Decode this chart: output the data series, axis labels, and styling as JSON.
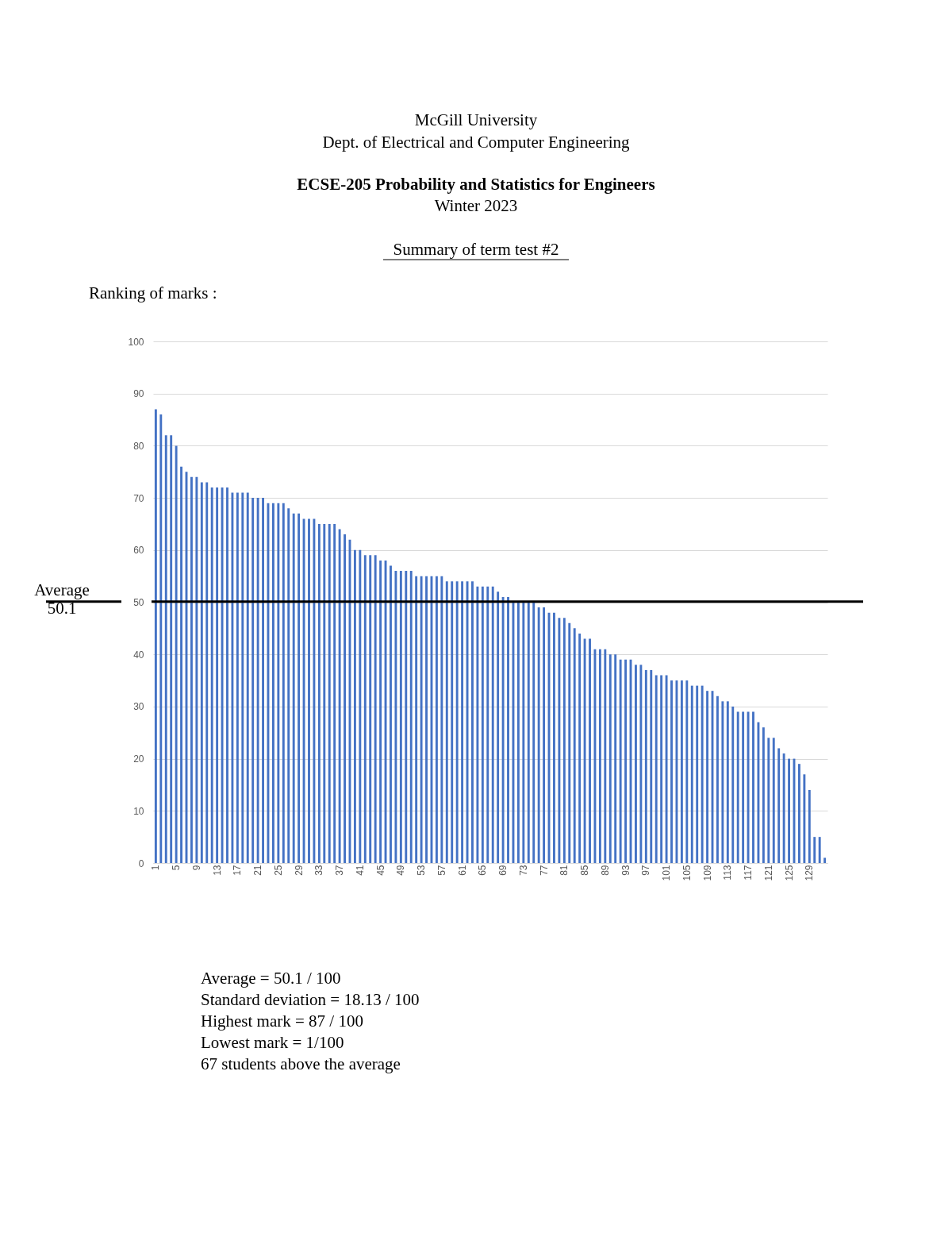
{
  "chart_data": {
    "type": "bar",
    "title": "ECSE-205 Probability and Statistics for Engineers",
    "subtitle": "Winter 2023",
    "categories": [
      "1",
      null,
      null,
      null,
      "5",
      null,
      null,
      null,
      "9",
      null,
      null,
      null,
      "13",
      null,
      null,
      null,
      "17",
      null,
      null,
      null,
      "21",
      null,
      null,
      null,
      "25",
      null,
      null,
      null,
      "29",
      null,
      null,
      null,
      "33",
      null,
      null,
      null,
      "37",
      null,
      null,
      null,
      "41",
      null,
      null,
      null,
      "45",
      null,
      null,
      null,
      "49",
      null,
      null,
      null,
      "53",
      null,
      null,
      null,
      "57",
      null,
      null,
      null,
      "61",
      null,
      null,
      null,
      "65",
      null,
      null,
      null,
      "69",
      null,
      null,
      null,
      "73",
      null,
      null,
      null,
      "77",
      null,
      null,
      null,
      "81",
      null,
      null,
      null,
      "85",
      null,
      null,
      null,
      "89",
      null,
      null,
      null,
      "93",
      null,
      null,
      null,
      "97",
      null,
      null,
      null,
      "101",
      null,
      null,
      null,
      "105",
      null,
      null,
      null,
      "109",
      null,
      null,
      null,
      "113",
      null,
      null,
      null,
      "117",
      null,
      null,
      null,
      "121",
      null,
      null,
      null,
      "125",
      null,
      null,
      null,
      "129",
      null,
      null,
      null
    ],
    "values": [
      87,
      86,
      82,
      82,
      80,
      76,
      75,
      74,
      74,
      73,
      73,
      72,
      72,
      72,
      72,
      71,
      71,
      71,
      71,
      70,
      70,
      70,
      69,
      69,
      69,
      69,
      68,
      67,
      67,
      66,
      66,
      66,
      65,
      65,
      65,
      65,
      64,
      63,
      62,
      60,
      60,
      59,
      59,
      59,
      58,
      58,
      57,
      56,
      56,
      56,
      56,
      55,
      55,
      55,
      55,
      55,
      55,
      54,
      54,
      54,
      54,
      54,
      54,
      53,
      53,
      53,
      53,
      52,
      51,
      51,
      50,
      50,
      50,
      50,
      50,
      49,
      49,
      48,
      48,
      47,
      47,
      46,
      45,
      44,
      43,
      43,
      41,
      41,
      41,
      40,
      40,
      39,
      39,
      39,
      38,
      38,
      37,
      37,
      36,
      36,
      36,
      35,
      35,
      35,
      35,
      34,
      34,
      34,
      33,
      33,
      32,
      31,
      31,
      30,
      29,
      29,
      29,
      29,
      27,
      26,
      24,
      24,
      22,
      21,
      20,
      20,
      19,
      17,
      14,
      5,
      5,
      1
    ],
    "color": "#4472c4",
    "ylim": [
      0,
      100
    ],
    "yticks": [
      0,
      10,
      20,
      30,
      40,
      50,
      60,
      70,
      80,
      90,
      100
    ],
    "grid": "y",
    "ref_lines": [
      {
        "axis": "y",
        "value": 50.1,
        "label": "Average\n50.1",
        "color": "#000000"
      }
    ],
    "annotations": [
      "McGill University",
      "Dept. of Electrical and Computer Engineering",
      "Summary of term test #2",
      "Ranking of marks :",
      "Average = 50.1 / 100",
      "Standard deviation = 18.13 / 100",
      "Highest mark = 87 / 100",
      "Lowest mark = 1/100",
      "67 students above the average"
    ]
  }
}
